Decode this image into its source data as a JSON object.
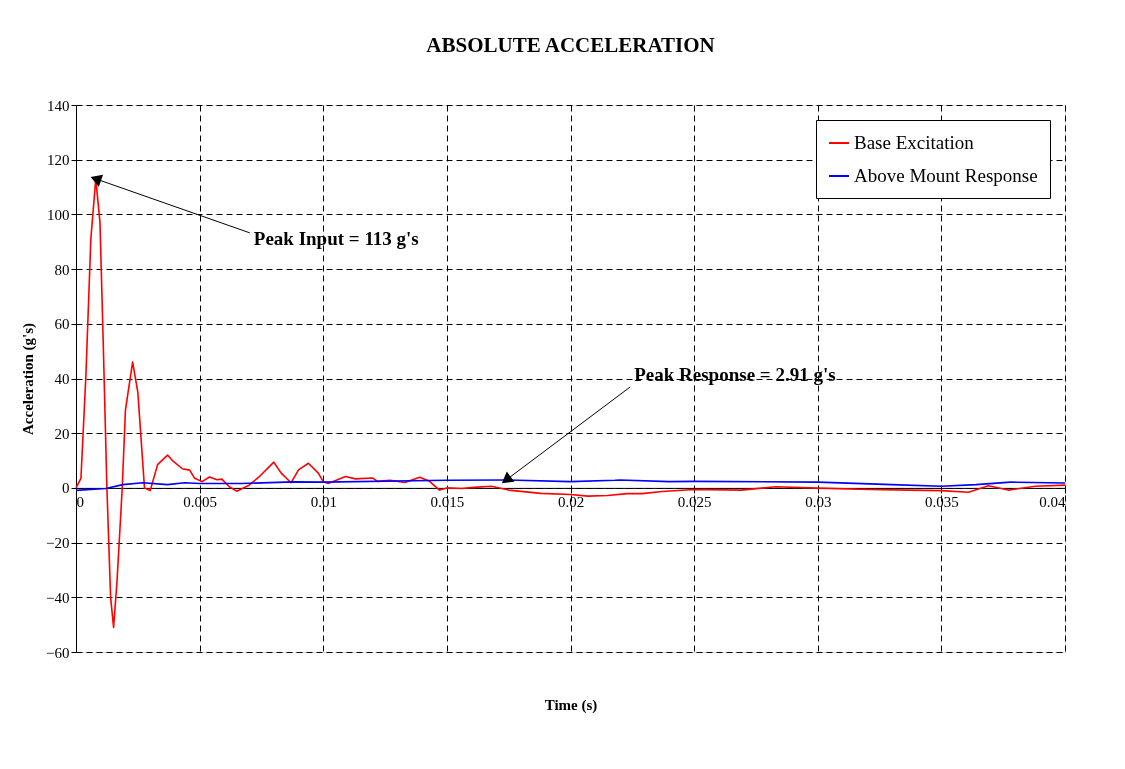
{
  "chart_data": {
    "type": "line",
    "title": "ABSOLUTE ACCELERATION",
    "xlabel": "Time (s)",
    "ylabel": "Acceleration (g's)",
    "xlim": [
      0,
      0.04
    ],
    "xticks": [
      0,
      0.005,
      0.01,
      0.015,
      0.02,
      0.025,
      0.03,
      0.035,
      0.04
    ],
    "ylim": [
      -60,
      140
    ],
    "yticks": [
      -60,
      -40,
      -20,
      0,
      20,
      40,
      60,
      80,
      100,
      120,
      140
    ],
    "grid": true,
    "legend": "top right",
    "marker": "none",
    "line_style": "solid",
    "series": [
      {
        "name": "Base Excitation",
        "color": "#ff0000",
        "x": [
          0,
          0.0002,
          0.0004,
          0.0006,
          0.0008,
          0.00097,
          0.0011,
          0.00125,
          0.0014,
          0.00152,
          0.00166,
          0.00187,
          0.002,
          0.00229,
          0.0025,
          0.00277,
          0.003,
          0.0033,
          0.0037,
          0.0039,
          0.0043,
          0.0046,
          0.0048,
          0.0051,
          0.0054,
          0.0057,
          0.0059,
          0.0062,
          0.0065,
          0.007,
          0.0074,
          0.008,
          0.0083,
          0.0087,
          0.009,
          0.0094,
          0.0098,
          0.01,
          0.0102,
          0.0109,
          0.0113,
          0.012,
          0.0122,
          0.0127,
          0.0133,
          0.0139,
          0.0143,
          0.0147,
          0.015,
          0.0156,
          0.0161,
          0.0168,
          0.0175,
          0.0188,
          0.02,
          0.0207,
          0.0215,
          0.0223,
          0.0229,
          0.0237,
          0.025,
          0.0269,
          0.0283,
          0.03,
          0.0321,
          0.0337,
          0.035,
          0.0361,
          0.0369,
          0.0377,
          0.0388,
          0.04
        ],
        "values": [
          0,
          3.5,
          41,
          91,
          113,
          97,
          53.5,
          0,
          -40,
          -51,
          -34,
          0,
          28.5,
          46,
          35,
          0,
          -1,
          8.5,
          12,
          10,
          7,
          6.5,
          3.5,
          2.3,
          4,
          3,
          3.2,
          0.4,
          -1.2,
          1,
          4,
          9.4,
          5.4,
          1.9,
          6.6,
          9,
          5.4,
          2.3,
          1.6,
          4.2,
          3.3,
          3.6,
          2.4,
          2.8,
          2,
          3.9,
          2.4,
          -0.8,
          0,
          -0.2,
          0.2,
          0.6,
          -0.8,
          -2,
          -2.4,
          -3,
          -2.8,
          -2.1,
          -2.1,
          -1.3,
          -0.6,
          -0.8,
          0.4,
          -0.1,
          -0.6,
          -0.8,
          -1,
          -1.6,
          0.8,
          -0.8,
          0.6,
          1
        ]
      },
      {
        "name": "Above Mount Response",
        "color": "#0000ff",
        "x": [
          0,
          0.0012,
          0.0019,
          0.0027,
          0.0037,
          0.0044,
          0.005,
          0.0067,
          0.0088,
          0.01,
          0.015,
          0.0174,
          0.02,
          0.0218,
          0.022,
          0.024,
          0.025,
          0.03,
          0.033,
          0.035,
          0.0364,
          0.0378,
          0.04
        ],
        "values": [
          -0.9,
          -0.2,
          1.2,
          1.9,
          1.2,
          1.9,
          1.6,
          1.6,
          2.2,
          2.1,
          2.8,
          2.91,
          2.3,
          2.8,
          2.9,
          2.3,
          2.4,
          2.1,
          1.2,
          0.6,
          1.2,
          2.1,
          1.8
        ]
      }
    ],
    "annotations": [
      {
        "text": "Peak Input = 113 g's",
        "x": 0.0008,
        "y": 113
      },
      {
        "text": "Peak Response = 2.91 g's",
        "x": 0.0174,
        "y": 2.91
      }
    ]
  }
}
